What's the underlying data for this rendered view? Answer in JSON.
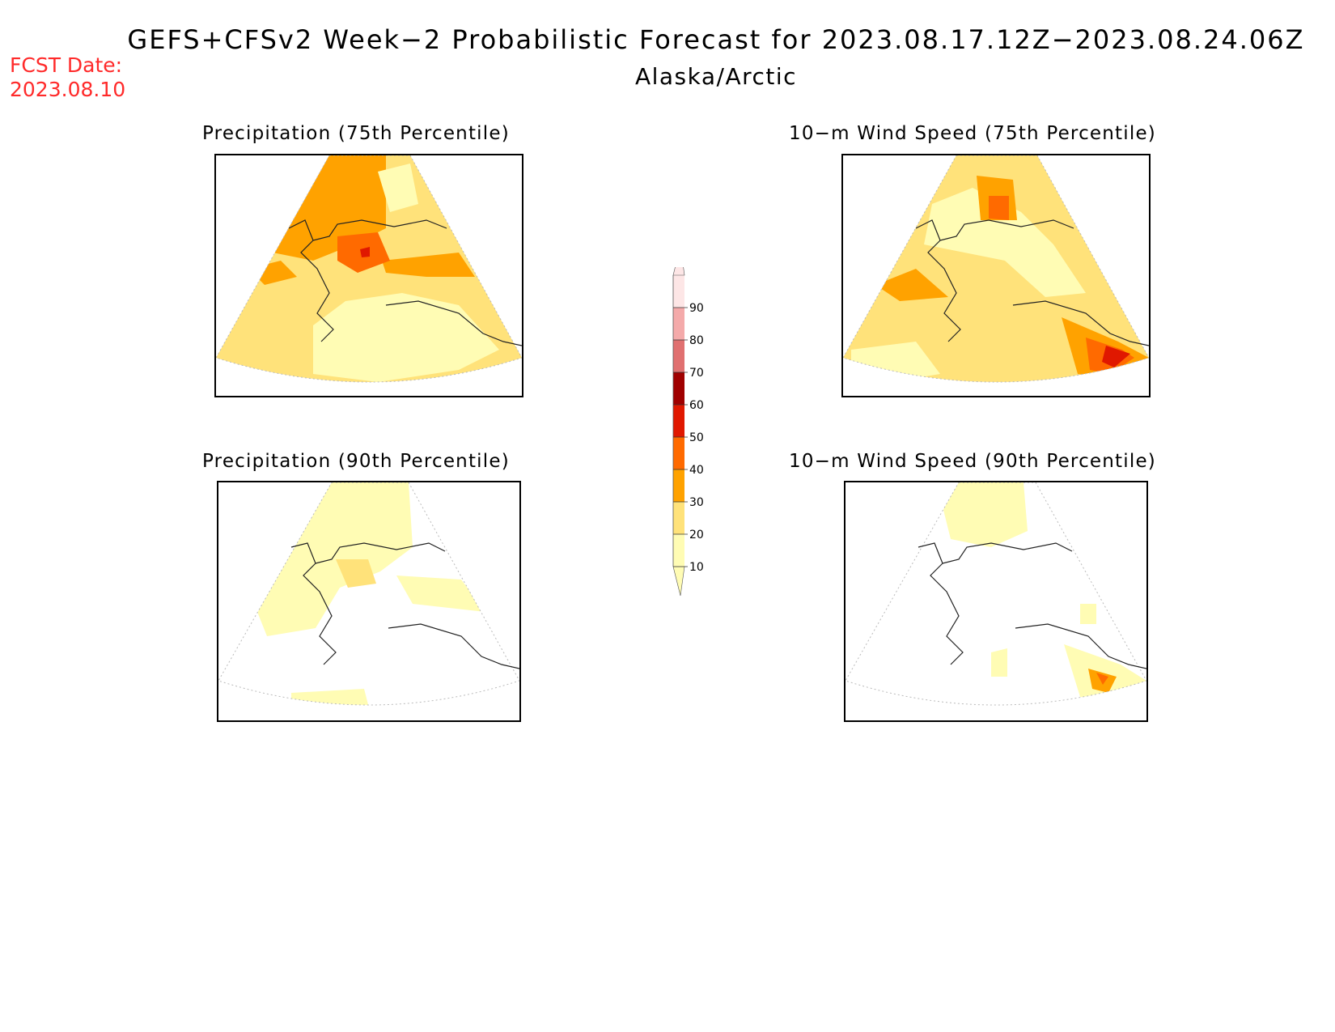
{
  "header": {
    "fcst_label": "FCST Date:",
    "fcst_date": "2023.08.10",
    "title": "GEFS+CFSv2 Week−2 Probabilistic Forecast for 2023.08.17.12Z−2023.08.24.06Z",
    "subtitle": "Alaska/Arctic"
  },
  "panels": [
    {
      "id": "precip75",
      "title": "Precipitation (75th Percentile)"
    },
    {
      "id": "wind75",
      "title": "10−m Wind Speed (75th Percentile)"
    },
    {
      "id": "precip90",
      "title": "Precipitation (90th Percentile)"
    },
    {
      "id": "wind90",
      "title": "10−m Wind Speed (90th Percentile)"
    }
  ],
  "colorbar": {
    "levels": [
      "10",
      "20",
      "30",
      "40",
      "50",
      "60",
      "70",
      "80",
      "90"
    ],
    "colors": [
      "#fffcb4",
      "#ffe27a",
      "#ffa200",
      "#ff6a00",
      "#e01800",
      "#a00000",
      "#e07070",
      "#f4aaaa",
      "#fde6e6"
    ]
  },
  "colors": {
    "fcst_red": "#ff2a2a",
    "band_10_20": "#fffcb4",
    "band_20_30": "#ffe27a",
    "band_30_40": "#ffa200",
    "band_40_50": "#ff6a00",
    "band_50_60": "#e01800"
  }
}
